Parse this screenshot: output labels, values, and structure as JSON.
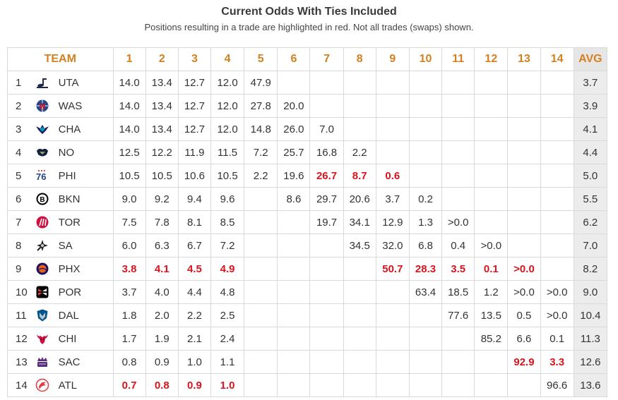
{
  "title": "Current Odds With Ties Included",
  "subtitle": "Positions resulting in a trade are highlighted in red. Not all trades (swaps) shown.",
  "header": {
    "team_label": "TEAM",
    "picks": [
      "1",
      "2",
      "3",
      "4",
      "5",
      "6",
      "7",
      "8",
      "9",
      "10",
      "11",
      "12",
      "13",
      "14"
    ],
    "avg_label": "AVG"
  },
  "rows": [
    {
      "rank": "1",
      "team": "UTA",
      "logo": "jazz-note-icon",
      "cells": [
        {
          "v": "14.0"
        },
        {
          "v": "13.4"
        },
        {
          "v": "12.7"
        },
        {
          "v": "12.0"
        },
        {
          "v": "47.9"
        },
        {
          "v": ""
        },
        {
          "v": ""
        },
        {
          "v": ""
        },
        {
          "v": ""
        },
        {
          "v": ""
        },
        {
          "v": ""
        },
        {
          "v": ""
        },
        {
          "v": ""
        },
        {
          "v": ""
        }
      ],
      "avg": "3.7"
    },
    {
      "rank": "2",
      "team": "WAS",
      "logo": "wizards-ball-icon",
      "cells": [
        {
          "v": "14.0"
        },
        {
          "v": "13.4"
        },
        {
          "v": "12.7"
        },
        {
          "v": "12.0"
        },
        {
          "v": "27.8"
        },
        {
          "v": "20.0"
        },
        {
          "v": ""
        },
        {
          "v": ""
        },
        {
          "v": ""
        },
        {
          "v": ""
        },
        {
          "v": ""
        },
        {
          "v": ""
        },
        {
          "v": ""
        },
        {
          "v": ""
        }
      ],
      "avg": "3.9"
    },
    {
      "rank": "3",
      "team": "CHA",
      "logo": "hornet-icon",
      "cells": [
        {
          "v": "14.0"
        },
        {
          "v": "13.4"
        },
        {
          "v": "12.7"
        },
        {
          "v": "12.0"
        },
        {
          "v": "14.8"
        },
        {
          "v": "26.0"
        },
        {
          "v": "7.0"
        },
        {
          "v": ""
        },
        {
          "v": ""
        },
        {
          "v": ""
        },
        {
          "v": ""
        },
        {
          "v": ""
        },
        {
          "v": ""
        },
        {
          "v": ""
        }
      ],
      "avg": "4.1"
    },
    {
      "rank": "4",
      "team": "NO",
      "logo": "pelican-icon",
      "cells": [
        {
          "v": "12.5"
        },
        {
          "v": "12.2"
        },
        {
          "v": "11.9"
        },
        {
          "v": "11.5"
        },
        {
          "v": "7.2"
        },
        {
          "v": "25.7"
        },
        {
          "v": "16.8"
        },
        {
          "v": "2.2"
        },
        {
          "v": ""
        },
        {
          "v": ""
        },
        {
          "v": ""
        },
        {
          "v": ""
        },
        {
          "v": ""
        },
        {
          "v": ""
        }
      ],
      "avg": "4.4"
    },
    {
      "rank": "5",
      "team": "PHI",
      "logo": "sixers-icon",
      "cells": [
        {
          "v": "10.5"
        },
        {
          "v": "10.5"
        },
        {
          "v": "10.6"
        },
        {
          "v": "10.5"
        },
        {
          "v": "2.2"
        },
        {
          "v": "19.6"
        },
        {
          "v": "26.7",
          "red": true
        },
        {
          "v": "8.7",
          "red": true
        },
        {
          "v": "0.6",
          "red": true
        },
        {
          "v": ""
        },
        {
          "v": ""
        },
        {
          "v": ""
        },
        {
          "v": ""
        },
        {
          "v": ""
        }
      ],
      "avg": "5.0"
    },
    {
      "rank": "6",
      "team": "BKN",
      "logo": "nets-ball-icon",
      "cells": [
        {
          "v": "9.0"
        },
        {
          "v": "9.2"
        },
        {
          "v": "9.4"
        },
        {
          "v": "9.6"
        },
        {
          "v": ""
        },
        {
          "v": "8.6"
        },
        {
          "v": "29.7"
        },
        {
          "v": "20.6"
        },
        {
          "v": "3.7"
        },
        {
          "v": "0.2"
        },
        {
          "v": ""
        },
        {
          "v": ""
        },
        {
          "v": ""
        },
        {
          "v": ""
        }
      ],
      "avg": "5.5"
    },
    {
      "rank": "7",
      "team": "TOR",
      "logo": "raptors-claw-icon",
      "cells": [
        {
          "v": "7.5"
        },
        {
          "v": "7.8"
        },
        {
          "v": "8.1"
        },
        {
          "v": "8.5"
        },
        {
          "v": ""
        },
        {
          "v": ""
        },
        {
          "v": "19.7"
        },
        {
          "v": "34.1"
        },
        {
          "v": "12.9"
        },
        {
          "v": "1.3"
        },
        {
          "v": ">0.0"
        },
        {
          "v": ""
        },
        {
          "v": ""
        },
        {
          "v": ""
        }
      ],
      "avg": "6.2"
    },
    {
      "rank": "8",
      "team": "SA",
      "logo": "spurs-icon",
      "cells": [
        {
          "v": "6.0"
        },
        {
          "v": "6.3"
        },
        {
          "v": "6.7"
        },
        {
          "v": "7.2"
        },
        {
          "v": ""
        },
        {
          "v": ""
        },
        {
          "v": ""
        },
        {
          "v": "34.5"
        },
        {
          "v": "32.0"
        },
        {
          "v": "6.8"
        },
        {
          "v": "0.4"
        },
        {
          "v": ">0.0"
        },
        {
          "v": ""
        },
        {
          "v": ""
        }
      ],
      "avg": "7.0"
    },
    {
      "rank": "9",
      "team": "PHX",
      "logo": "suns-icon",
      "cells": [
        {
          "v": "3.8",
          "red": true
        },
        {
          "v": "4.1",
          "red": true
        },
        {
          "v": "4.5",
          "red": true
        },
        {
          "v": "4.9",
          "red": true
        },
        {
          "v": ""
        },
        {
          "v": ""
        },
        {
          "v": ""
        },
        {
          "v": ""
        },
        {
          "v": "50.7",
          "red": true
        },
        {
          "v": "28.3",
          "red": true
        },
        {
          "v": "3.5",
          "red": true
        },
        {
          "v": "0.1",
          "red": true
        },
        {
          "v": ">0.0",
          "red": true
        },
        {
          "v": ""
        }
      ],
      "avg": "8.2"
    },
    {
      "rank": "10",
      "team": "POR",
      "logo": "blazers-pinwheel-icon",
      "cells": [
        {
          "v": "3.7"
        },
        {
          "v": "4.0"
        },
        {
          "v": "4.4"
        },
        {
          "v": "4.8"
        },
        {
          "v": ""
        },
        {
          "v": ""
        },
        {
          "v": ""
        },
        {
          "v": ""
        },
        {
          "v": ""
        },
        {
          "v": "63.4"
        },
        {
          "v": "18.5"
        },
        {
          "v": "1.2"
        },
        {
          "v": ">0.0"
        },
        {
          "v": ">0.0"
        }
      ],
      "avg": "9.0"
    },
    {
      "rank": "11",
      "team": "DAL",
      "logo": "mavs-shield-icon",
      "cells": [
        {
          "v": "1.8"
        },
        {
          "v": "2.0"
        },
        {
          "v": "2.2"
        },
        {
          "v": "2.5"
        },
        {
          "v": ""
        },
        {
          "v": ""
        },
        {
          "v": ""
        },
        {
          "v": ""
        },
        {
          "v": ""
        },
        {
          "v": ""
        },
        {
          "v": "77.6"
        },
        {
          "v": "13.5"
        },
        {
          "v": "0.5"
        },
        {
          "v": ">0.0"
        }
      ],
      "avg": "10.4"
    },
    {
      "rank": "12",
      "team": "CHI",
      "logo": "bull-head-icon",
      "cells": [
        {
          "v": "1.7"
        },
        {
          "v": "1.9"
        },
        {
          "v": "2.1"
        },
        {
          "v": "2.4"
        },
        {
          "v": ""
        },
        {
          "v": ""
        },
        {
          "v": ""
        },
        {
          "v": ""
        },
        {
          "v": ""
        },
        {
          "v": ""
        },
        {
          "v": ""
        },
        {
          "v": "85.2"
        },
        {
          "v": "6.6"
        },
        {
          "v": "0.1"
        }
      ],
      "avg": "11.3"
    },
    {
      "rank": "13",
      "team": "SAC",
      "logo": "kings-crown-icon",
      "cells": [
        {
          "v": "0.8"
        },
        {
          "v": "0.9"
        },
        {
          "v": "1.0"
        },
        {
          "v": "1.1"
        },
        {
          "v": ""
        },
        {
          "v": ""
        },
        {
          "v": ""
        },
        {
          "v": ""
        },
        {
          "v": ""
        },
        {
          "v": ""
        },
        {
          "v": ""
        },
        {
          "v": ""
        },
        {
          "v": "92.9",
          "red": true
        },
        {
          "v": "3.3",
          "red": true
        }
      ],
      "avg": "12.6"
    },
    {
      "rank": "14",
      "team": "ATL",
      "logo": "hawks-icon",
      "cells": [
        {
          "v": "0.7",
          "red": true
        },
        {
          "v": "0.8",
          "red": true
        },
        {
          "v": "0.9",
          "red": true
        },
        {
          "v": "1.0",
          "red": true
        },
        {
          "v": ""
        },
        {
          "v": ""
        },
        {
          "v": ""
        },
        {
          "v": ""
        },
        {
          "v": ""
        },
        {
          "v": ""
        },
        {
          "v": ""
        },
        {
          "v": ""
        },
        {
          "v": ""
        },
        {
          "v": "96.6"
        }
      ],
      "avg": "13.6"
    }
  ],
  "colors": {
    "header_orange": "#d4801f",
    "trade_red": "#d8141e",
    "avg_bg": "#ececec",
    "border": "#d9d9d9"
  }
}
